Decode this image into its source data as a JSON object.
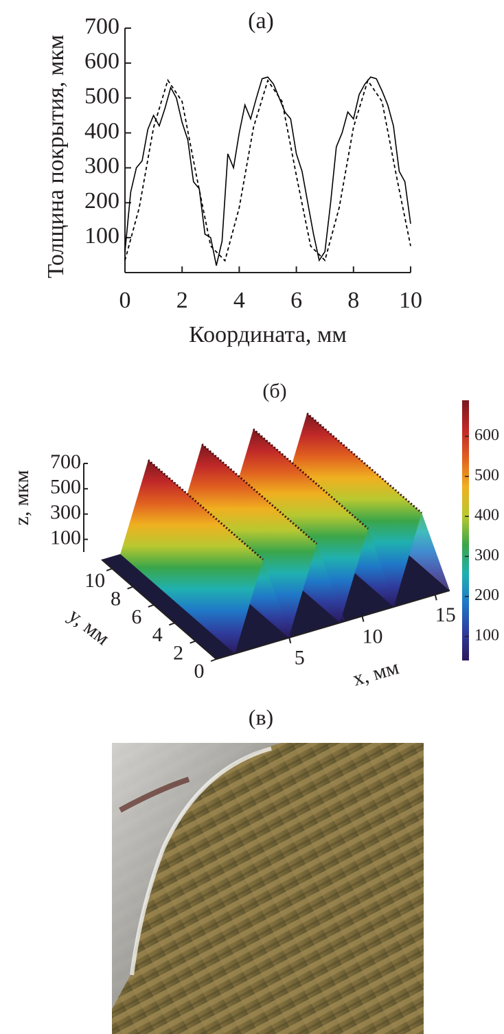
{
  "chart_data": [
    {
      "type": "line",
      "title": "(а)",
      "ylabel": "Толщина покрытия, мкм",
      "xlabel": "Координата, мм",
      "xlim": [
        0,
        10
      ],
      "xticks": [
        0,
        2,
        4,
        6,
        8,
        10
      ],
      "ylim": [
        0,
        700
      ],
      "yticks": [
        100,
        200,
        300,
        400,
        500,
        600,
        700
      ],
      "series": [
        {
          "color": "#000000",
          "linestyle": "solid",
          "x": [
            0,
            0.2,
            0.4,
            0.6,
            0.8,
            1,
            1.2,
            1.4,
            1.6,
            1.8,
            2,
            2.2,
            2.4,
            2.6,
            2.8,
            3,
            3.2,
            3.4,
            3.6,
            3.8,
            4,
            4.2,
            4.4,
            4.6,
            4.8,
            5,
            5.2,
            5.4,
            5.6,
            5.8,
            6,
            6.2,
            6.4,
            6.6,
            6.8,
            7,
            7.2,
            7.4,
            7.6,
            7.8,
            8,
            8.2,
            8.4,
            8.6,
            8.8,
            9,
            9.2,
            9.4,
            9.6,
            9.8,
            10
          ],
          "values": [
            60,
            230,
            300,
            320,
            410,
            450,
            420,
            470,
            530,
            500,
            430,
            380,
            260,
            240,
            110,
            100,
            20,
            90,
            340,
            300,
            400,
            480,
            440,
            500,
            555,
            560,
            540,
            500,
            460,
            440,
            340,
            290,
            200,
            110,
            35,
            60,
            200,
            360,
            400,
            460,
            440,
            510,
            540,
            560,
            555,
            520,
            480,
            420,
            290,
            260,
            140
          ]
        },
        {
          "color": "#000000",
          "linestyle": "dashed",
          "x": [
            0,
            0.5,
            1,
            1.5,
            2,
            2.5,
            3,
            3.5,
            4,
            4.5,
            5,
            5.5,
            6,
            6.5,
            7,
            7.5,
            8,
            8.5,
            9,
            9.5,
            10
          ],
          "values": [
            35,
            186,
            415,
            551,
            490,
            278,
            76,
            34,
            186,
            416,
            550,
            490,
            278,
            76,
            35,
            186,
            416,
            550,
            490,
            278,
            76
          ]
        }
      ]
    },
    {
      "type": "surface",
      "title": "(б)",
      "zlabel": "z, мкм",
      "ylabel": "y, мм",
      "xlabel": "x, мм",
      "zlim": [
        0,
        700
      ],
      "zticks": [
        100,
        300,
        500,
        700
      ],
      "ylim": [
        0,
        11
      ],
      "yticks": [
        0,
        2,
        4,
        6,
        8,
        10
      ],
      "xlim": [
        0,
        16
      ],
      "xticks": [
        5,
        10,
        15
      ],
      "clim": [
        40,
        690
      ],
      "cticks": [
        100,
        200,
        300,
        400,
        500,
        600
      ],
      "colormap": [
        "#2b1a5e",
        "#2f3e9e",
        "#1f78c8",
        "#20b0b0",
        "#3aa64a",
        "#b8c830",
        "#f0b020",
        "#e06020",
        "#c02828",
        "#7a1820"
      ]
    }
  ],
  "photo": {
    "title": "(в)"
  }
}
